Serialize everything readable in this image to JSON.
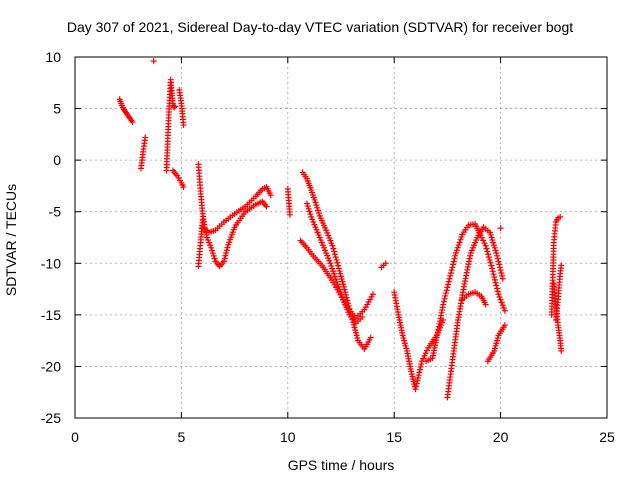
{
  "chart_data": {
    "type": "scatter",
    "title": "Day 307 of 2021, Sidereal Day-to-day VTEC variation (SDTVAR) for receiver bogt",
    "xlabel": "GPS time / hours",
    "ylabel": "SDTVAR / TECUs",
    "xlim": [
      0,
      25
    ],
    "ylim": [
      -25,
      10
    ],
    "xticks": [
      "0",
      "5",
      "10",
      "15",
      "20",
      "25"
    ],
    "yticks": [
      "-25",
      "-20",
      "-15",
      "-10",
      "-5",
      "0",
      "5",
      "10"
    ],
    "grid": true,
    "marker": "+",
    "color": "#ff0000",
    "series": [
      {
        "x": [
          2.1,
          2.2,
          2.3,
          2.4,
          2.5,
          2.6,
          2.7
        ],
        "y": [
          5.9,
          5.3,
          4.9,
          4.6,
          4.3,
          4.0,
          3.7
        ]
      },
      {
        "x": [
          3.1,
          3.2,
          3.3
        ],
        "y": [
          -0.8,
          0.8,
          2.2
        ]
      },
      {
        "x": [
          3.7
        ],
        "y": [
          9.6
        ]
      },
      {
        "x": [
          4.3,
          4.4,
          4.5,
          4.55,
          4.6,
          4.65,
          4.7
        ],
        "y": [
          -1.0,
          4.1,
          7.8,
          6.5,
          5.5,
          5.1,
          5.2
        ]
      },
      {
        "x": [
          4.9,
          5.0,
          5.05,
          5.1
        ],
        "y": [
          6.8,
          5.5,
          4.5,
          3.4
        ]
      },
      {
        "x": [
          4.6,
          4.8,
          5.0,
          5.1
        ],
        "y": [
          -1.0,
          -1.5,
          -2.2,
          -2.6
        ]
      },
      {
        "x": [
          5.8,
          5.9,
          6.0,
          6.1,
          6.2,
          6.4,
          6.6,
          6.8,
          7.0,
          7.2,
          7.5,
          8.0,
          8.5,
          8.8,
          9.0
        ],
        "y": [
          -0.4,
          -3.0,
          -5.2,
          -6.5,
          -7.5,
          -8.5,
          -9.8,
          -10.3,
          -9.8,
          -8.2,
          -6.5,
          -5.0,
          -4.3,
          -4.0,
          -4.5
        ]
      },
      {
        "x": [
          6.0,
          6.3,
          6.6,
          7.0,
          7.5,
          8.0,
          8.5,
          8.8,
          9.0,
          9.2
        ],
        "y": [
          -6.5,
          -7.0,
          -6.8,
          -6.0,
          -5.2,
          -4.5,
          -3.5,
          -2.8,
          -2.6,
          -3.4
        ]
      },
      {
        "x": [
          5.8,
          5.9,
          6.0
        ],
        "y": [
          -10.3,
          -8.0,
          -5.8
        ]
      },
      {
        "x": [
          10.0,
          10.1
        ],
        "y": [
          -2.8,
          -5.3
        ]
      },
      {
        "x": [
          10.7,
          10.9,
          11.1,
          11.3,
          11.5,
          11.8,
          12.1,
          12.4,
          12.7,
          13.0,
          13.3,
          13.6,
          13.9
        ],
        "y": [
          -1.2,
          -1.8,
          -2.9,
          -4.1,
          -5.4,
          -6.8,
          -8.3,
          -10.5,
          -12.8,
          -15.2,
          -17.5,
          -18.3,
          -17.2
        ]
      },
      {
        "x": [
          10.9,
          11.1,
          11.4,
          11.7,
          12.0,
          12.3,
          12.6,
          12.9,
          13.2,
          13.5
        ],
        "y": [
          -4.2,
          -5.5,
          -7.0,
          -8.5,
          -10.0,
          -11.8,
          -13.5,
          -15.0,
          -15.8,
          -15.2
        ]
      },
      {
        "x": [
          10.6,
          10.9,
          11.2,
          11.6,
          12.0,
          12.4,
          12.8,
          13.2,
          13.6,
          14.0
        ],
        "y": [
          -7.8,
          -8.5,
          -9.3,
          -10.2,
          -11.4,
          -12.8,
          -14.3,
          -15.3,
          -14.5,
          -13.0
        ]
      },
      {
        "x": [
          14.4,
          14.6
        ],
        "y": [
          -10.4,
          -10.0
        ]
      },
      {
        "x": [
          15.0,
          15.2,
          15.4,
          15.6,
          15.8,
          16.0,
          16.3,
          16.6,
          17.0,
          17.3
        ],
        "y": [
          -12.8,
          -15.0,
          -17.0,
          -18.5,
          -20.5,
          -22.2,
          -19.5,
          -18.2,
          -17.0,
          -15.5
        ]
      },
      {
        "x": [
          16.5,
          16.8,
          17.0,
          17.3,
          17.6,
          17.9,
          18.2,
          18.5,
          18.8,
          19.0,
          19.3,
          19.6,
          19.9,
          20.2
        ],
        "y": [
          -19.5,
          -19.2,
          -17.2,
          -14.0,
          -11.5,
          -9.0,
          -7.2,
          -6.3,
          -6.2,
          -7.0,
          -8.3,
          -10.5,
          -13.0,
          -14.6
        ]
      },
      {
        "x": [
          17.5,
          17.8,
          18.0,
          18.3,
          18.6,
          18.9,
          19.2,
          19.5,
          19.8,
          20.1
        ],
        "y": [
          -23.0,
          -18.5,
          -15.5,
          -12.0,
          -9.0,
          -7.5,
          -6.5,
          -7.0,
          -9.0,
          -11.5
        ]
      },
      {
        "x": [
          18.2,
          18.5,
          18.8,
          19.1,
          19.3
        ],
        "y": [
          -13.5,
          -13.0,
          -12.8,
          -13.2,
          -14.0
        ]
      },
      {
        "x": [
          19.4,
          19.7,
          19.9,
          20.2
        ],
        "y": [
          -19.5,
          -18.5,
          -17.0,
          -16.0
        ]
      },
      {
        "x": [
          20.0
        ],
        "y": [
          -6.6
        ]
      },
      {
        "x": [
          22.4,
          22.5,
          22.6,
          22.7,
          22.8
        ],
        "y": [
          -15.0,
          -8.0,
          -6.0,
          -5.6,
          -5.5
        ]
      },
      {
        "x": [
          22.6,
          22.7,
          22.8,
          22.85
        ],
        "y": [
          -15.5,
          -13.5,
          -11.0,
          -10.2
        ]
      },
      {
        "x": [
          22.5,
          22.6,
          22.7,
          22.8,
          22.85
        ],
        "y": [
          -12.0,
          -14.0,
          -16.0,
          -17.5,
          -18.5
        ]
      }
    ]
  }
}
